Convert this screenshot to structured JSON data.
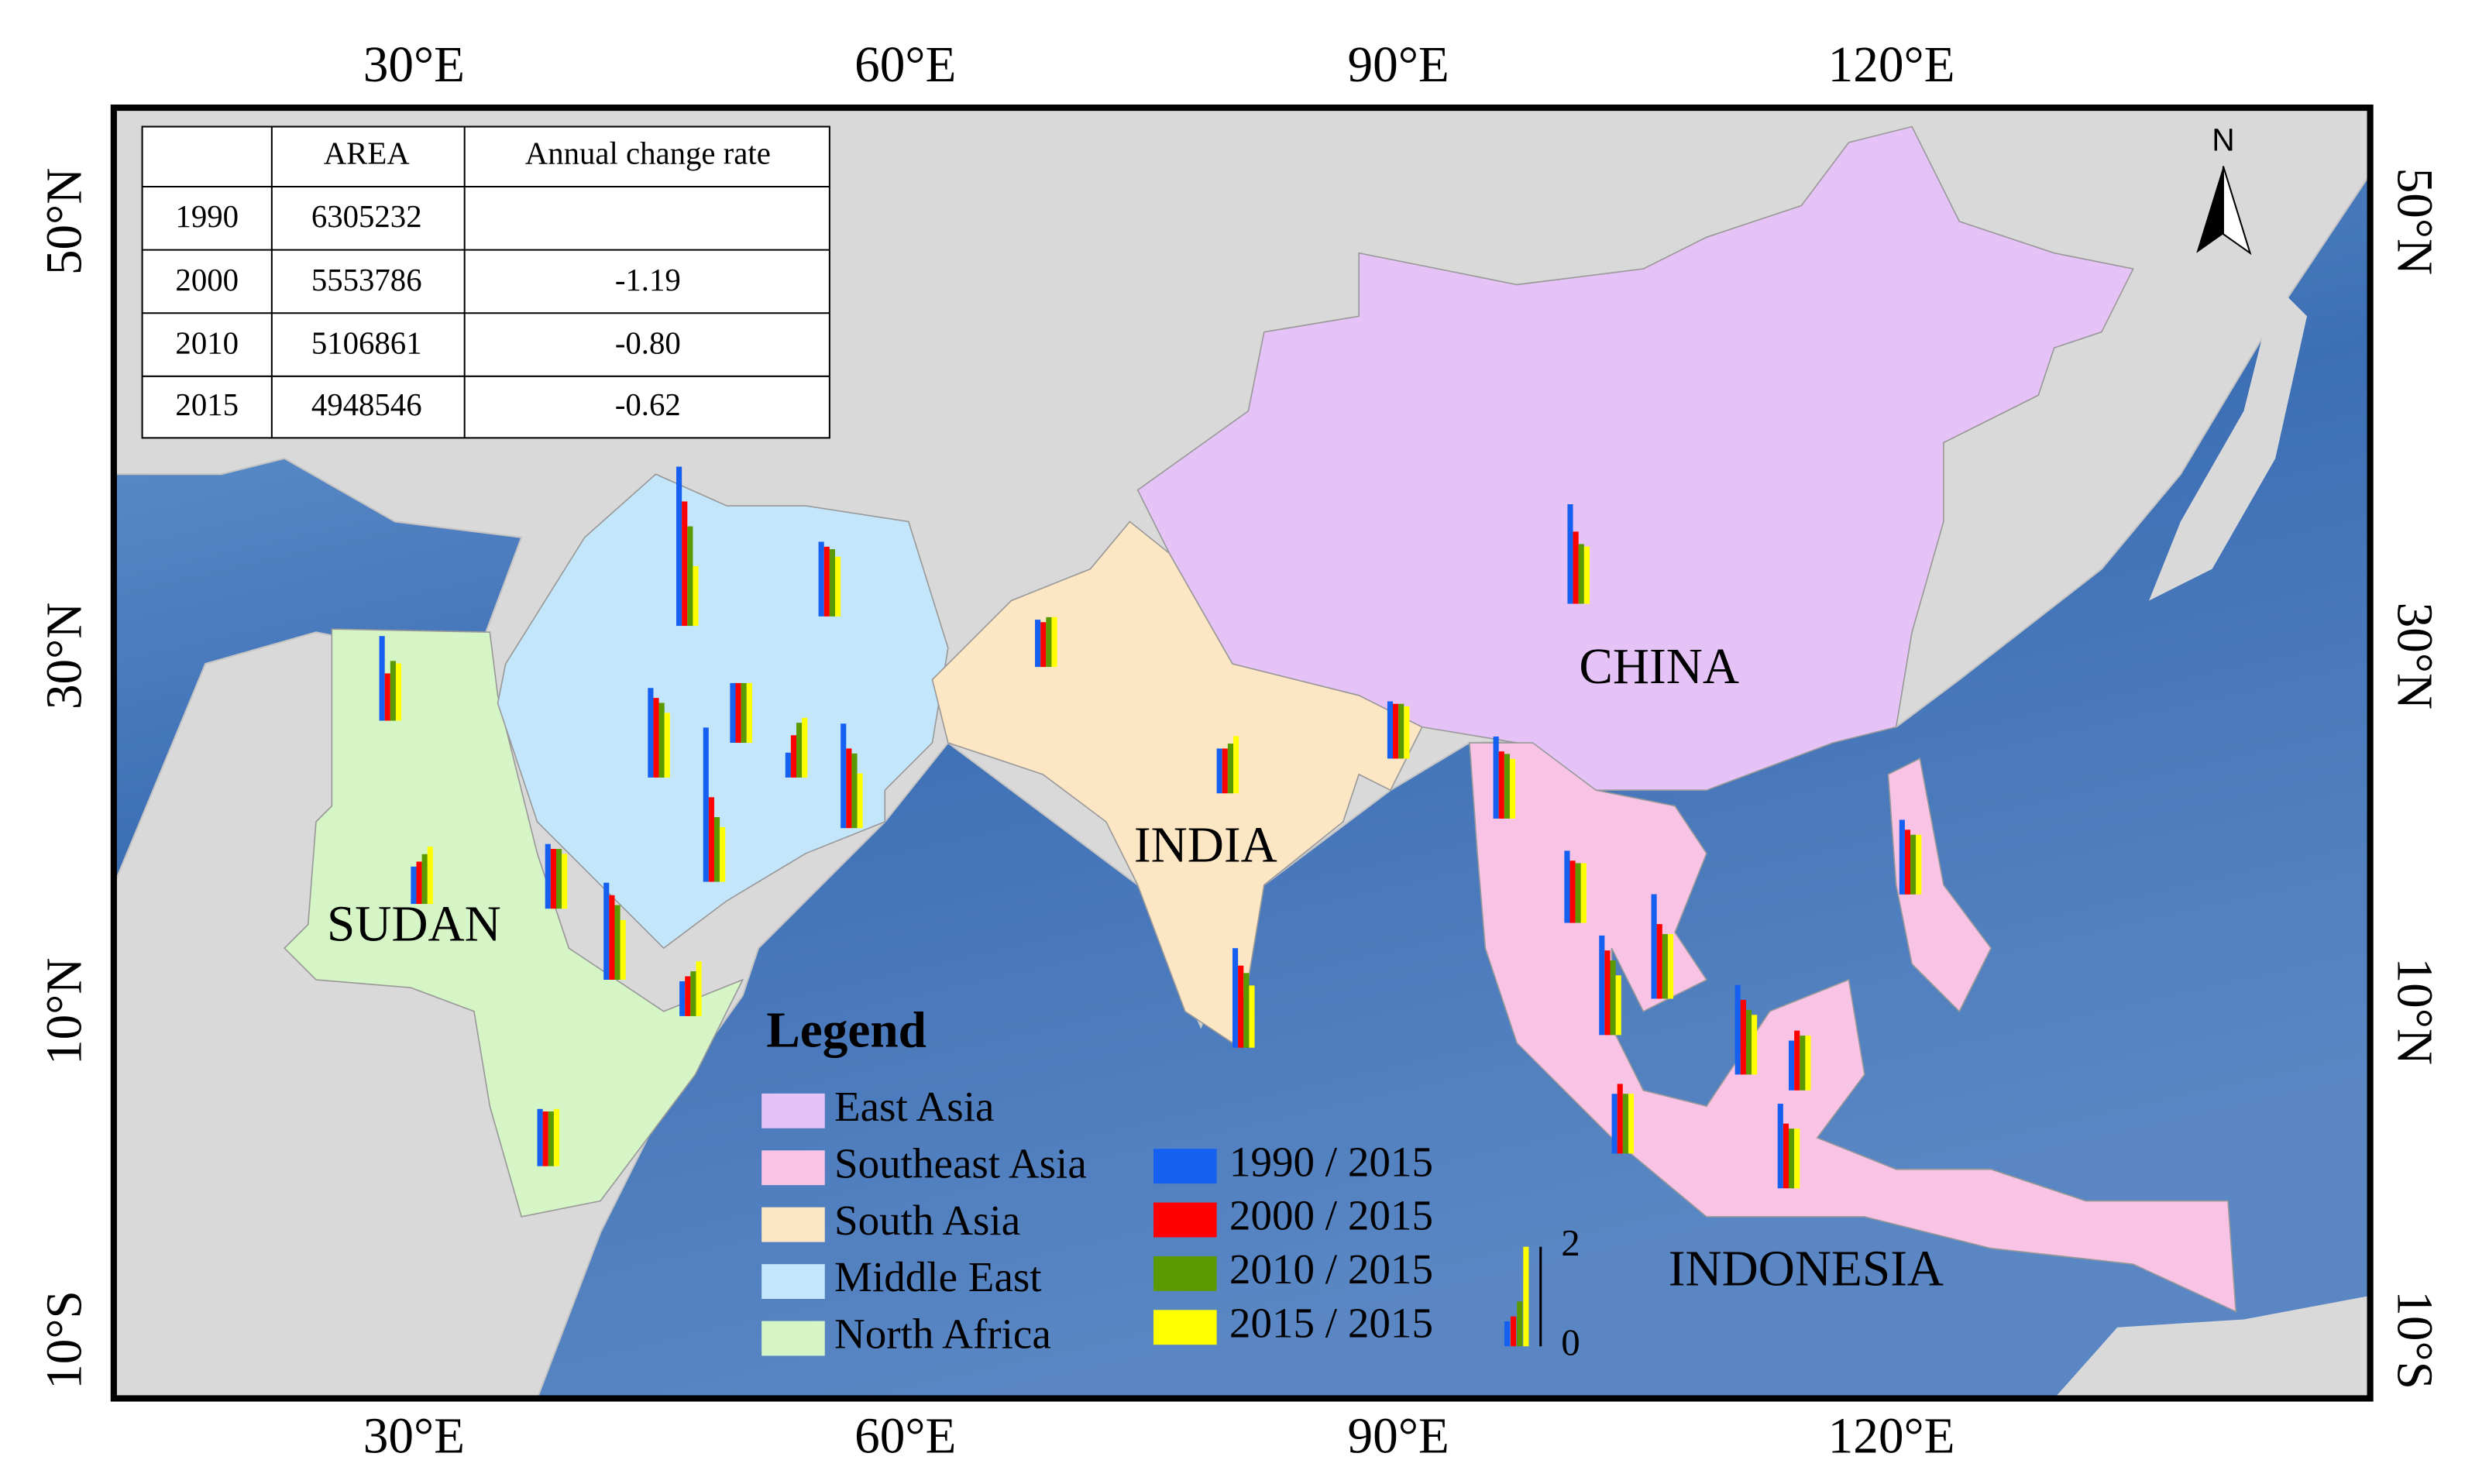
{
  "map": {
    "x_tick_labels": [
      "30°E",
      "60°E",
      "90°E",
      "120°E"
    ],
    "y_tick_labels": [
      "50°N",
      "30°N",
      "10°N",
      "10°S"
    ],
    "north": "N",
    "region_labels": [
      "CHINA",
      "INDIA",
      "SUDAN",
      "INDONESIA"
    ]
  },
  "table": {
    "header": [
      "AREA",
      "Annual change rate"
    ],
    "rows": [
      [
        "1990",
        "6305232"
      ],
      [
        "2000",
        "5553786",
        "-1.19"
      ],
      [
        "2010",
        "5106861",
        "-0.80"
      ],
      [
        "2015",
        "4948546",
        "-0.62"
      ]
    ]
  },
  "legend": {
    "title": "Legend",
    "regions": [
      {
        "name": "East Asia",
        "color": "#e6c3f7"
      },
      {
        "name": "Southeast Asia",
        "color": "#f9c3e6"
      },
      {
        "name": "South Asia",
        "color": "#fde6c3"
      },
      {
        "name": "Middle East",
        "color": "#c3e6fb"
      },
      {
        "name": "North Africa",
        "color": "#d6f5c6"
      }
    ],
    "series": [
      {
        "name": "1990 / 2015",
        "color": "#1560f0"
      },
      {
        "name": "2000 / 2015",
        "color": "#ff0000"
      },
      {
        "name": "2010 / 2015",
        "color": "#5a9a00"
      },
      {
        "name": "2015 / 2015",
        "color": "#ffff00"
      }
    ],
    "scale": {
      "min": 0,
      "max": 2
    },
    "sample_values": [
      0.5,
      0.6,
      0.9,
      2.0
    ]
  },
  "bar_groups": [
    [
      1.7,
      0.95,
      1.2,
      1.15
    ],
    [
      0.75,
      0.85,
      1.0,
      1.15
    ],
    [
      1.15,
      1.1,
      1.1,
      1.15
    ],
    [
      1.3,
      1.2,
      1.2,
      1.1
    ],
    [
      1.95,
      1.7,
      1.5,
      1.2
    ],
    [
      0.7,
      0.8,
      0.9,
      1.1
    ],
    [
      3.2,
      2.5,
      2.0,
      1.2
    ],
    [
      1.5,
      1.4,
      1.35,
      1.2
    ],
    [
      1.8,
      1.6,
      1.5,
      1.3
    ],
    [
      1.2,
      1.2,
      1.2,
      1.2
    ],
    [
      3.1,
      1.7,
      1.3,
      1.1
    ],
    [
      0.5,
      0.85,
      1.1,
      1.2
    ],
    [
      2.1,
      1.6,
      1.5,
      1.1
    ],
    [
      0.95,
      0.9,
      1.0,
      1.0
    ],
    [
      0.9,
      0.9,
      1.0,
      1.15
    ],
    [
      1.15,
      1.1,
      1.1,
      1.05
    ],
    [
      2.0,
      1.45,
      1.2,
      1.15
    ],
    [
      1.65,
      1.35,
      1.3,
      1.2
    ],
    [
      1.45,
      1.25,
      1.2,
      1.2
    ],
    [
      2.0,
      1.65,
      1.5,
      1.25
    ],
    [
      2.0,
      1.7,
      1.5,
      1.2
    ],
    [
      2.1,
      1.5,
      1.3,
      1.3
    ],
    [
      1.5,
      1.3,
      1.2,
      1.2
    ],
    [
      1.8,
      1.5,
      1.3,
      1.2
    ],
    [
      1.0,
      1.2,
      1.1,
      1.1
    ],
    [
      1.2,
      1.4,
      1.2,
      1.2
    ],
    [
      1.7,
      1.3,
      1.2,
      1.2
    ]
  ]
}
